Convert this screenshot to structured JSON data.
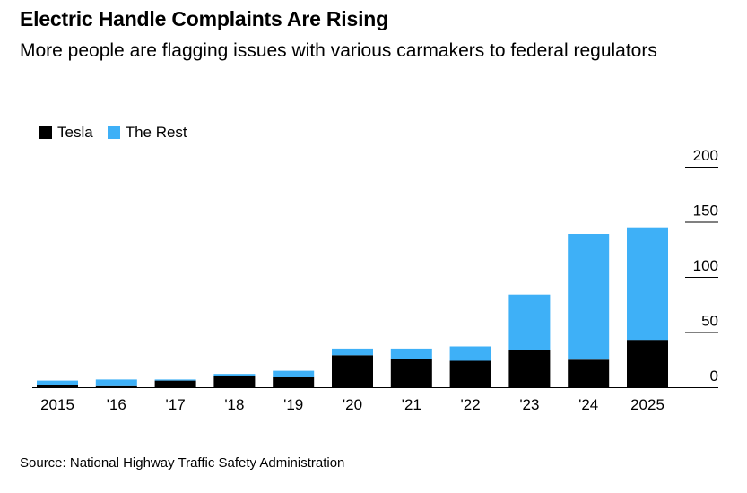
{
  "header": {
    "title": "Electric Handle Complaints Are Rising",
    "subtitle": "More people are flagging issues with various carmakers to federal regulators"
  },
  "footer": {
    "source": "Source: National Highway Traffic Safety Administration"
  },
  "chart_data": {
    "type": "bar",
    "stacked": true,
    "title": "Electric Handle Complaints Are Rising",
    "subtitle": "More people are flagging issues with various carmakers to federal regulators",
    "categories": [
      "2015",
      "'16",
      "'17",
      "'18",
      "'19",
      "'20",
      "'21",
      "'22",
      "'23",
      "'24",
      "2025"
    ],
    "series": [
      {
        "name": "Tesla",
        "color": "#000000",
        "values": [
          2,
          1,
          6,
          10,
          9,
          29,
          26,
          24,
          34,
          25,
          43
        ]
      },
      {
        "name": "The Rest",
        "color": "#3eb0f7",
        "values": [
          4,
          6,
          1,
          2,
          6,
          6,
          9,
          13,
          50,
          114,
          102
        ]
      }
    ],
    "y_axis": {
      "min": 0,
      "max": 200,
      "ticks": [
        0,
        50,
        100,
        150,
        200
      ],
      "position": "right"
    },
    "legend_position": "top-left",
    "grid": true,
    "source": "Source: National Highway Traffic Safety Administration"
  }
}
